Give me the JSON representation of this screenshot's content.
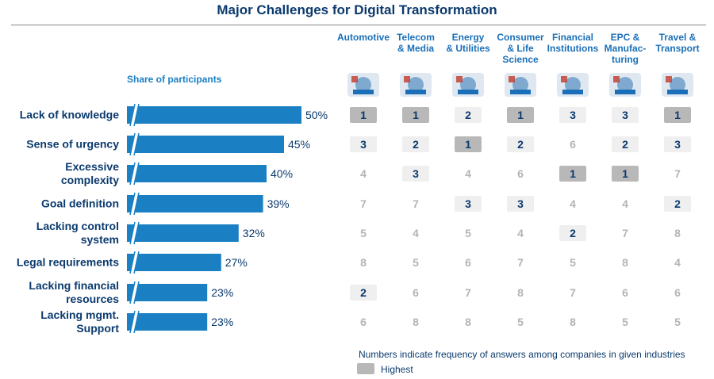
{
  "title": "Major Challenges for Digital Transformation",
  "share_label": "Share of participants",
  "note": "Numbers indicate frequency of answers among companies in given industries",
  "legend_label": "Highest",
  "colors": {
    "title": "#0b3a6e",
    "bar": "#1a7fc3",
    "header": "#1a6fb8",
    "highest_fill": "#b8b8b8",
    "rank_fill": "#efeff0",
    "rank_text": "#0b3a6e",
    "muted_text": "#b4b4b4"
  },
  "industries": [
    {
      "label": "Automotive",
      "icon": "car-factory-icon"
    },
    {
      "label": "Telecom & Media",
      "icon": "satellite-dish-icon"
    },
    {
      "label": "Energy & Utilities",
      "icon": "wind-turbine-icon"
    },
    {
      "label": "Consumer & Life Science",
      "icon": "shoppers-icon"
    },
    {
      "label": "Financial Institutions",
      "icon": "office-buildings-icon"
    },
    {
      "label": "EPC & Manufac- turing",
      "icon": "gears-icon"
    },
    {
      "label": "Travel & Transport",
      "icon": "airplane-globe-icon"
    }
  ],
  "chart_data": {
    "type": "bar",
    "title": "Major Challenges for Digital Transformation",
    "ylabel": "Share of participants",
    "categories": [
      "Lack of knowledge",
      "Sense of urgency",
      "Excessive complexity",
      "Goal definition",
      "Lacking control system",
      "Legal requirements",
      "Lacking financial resources",
      "Lacking mgmt. Support"
    ],
    "values": [
      50,
      45,
      40,
      39,
      32,
      27,
      23,
      23
    ],
    "value_labels": [
      "50%",
      "45%",
      "40%",
      "39%",
      "32%",
      "27%",
      "23%",
      "23%"
    ],
    "axis_break": true,
    "industry_ranks": [
      [
        1,
        1,
        2,
        1,
        3,
        3,
        1
      ],
      [
        3,
        2,
        1,
        2,
        6,
        2,
        3
      ],
      [
        4,
        3,
        4,
        6,
        1,
        1,
        7
      ],
      [
        7,
        7,
        3,
        3,
        4,
        4,
        2
      ],
      [
        5,
        4,
        5,
        4,
        2,
        7,
        8
      ],
      [
        8,
        5,
        6,
        7,
        5,
        8,
        4
      ],
      [
        2,
        6,
        7,
        8,
        7,
        6,
        6
      ],
      [
        6,
        8,
        8,
        5,
        8,
        5,
        5
      ]
    ],
    "rank_styles": [
      [
        "highest",
        "highest",
        "top",
        "highest",
        "top",
        "top",
        "highest"
      ],
      [
        "top",
        "top",
        "highest",
        "top",
        "plain",
        "top",
        "top"
      ],
      [
        "plain",
        "top",
        "plain",
        "plain",
        "highest",
        "highest",
        "plain"
      ],
      [
        "plain",
        "plain",
        "top",
        "top",
        "plain",
        "plain",
        "top"
      ],
      [
        "plain",
        "plain",
        "plain",
        "plain",
        "top",
        "plain",
        "plain"
      ],
      [
        "plain",
        "plain",
        "plain",
        "plain",
        "plain",
        "plain",
        "plain"
      ],
      [
        "top",
        "plain",
        "plain",
        "plain",
        "plain",
        "plain",
        "plain"
      ],
      [
        "plain",
        "plain",
        "plain",
        "plain",
        "plain",
        "plain",
        "plain"
      ]
    ]
  }
}
